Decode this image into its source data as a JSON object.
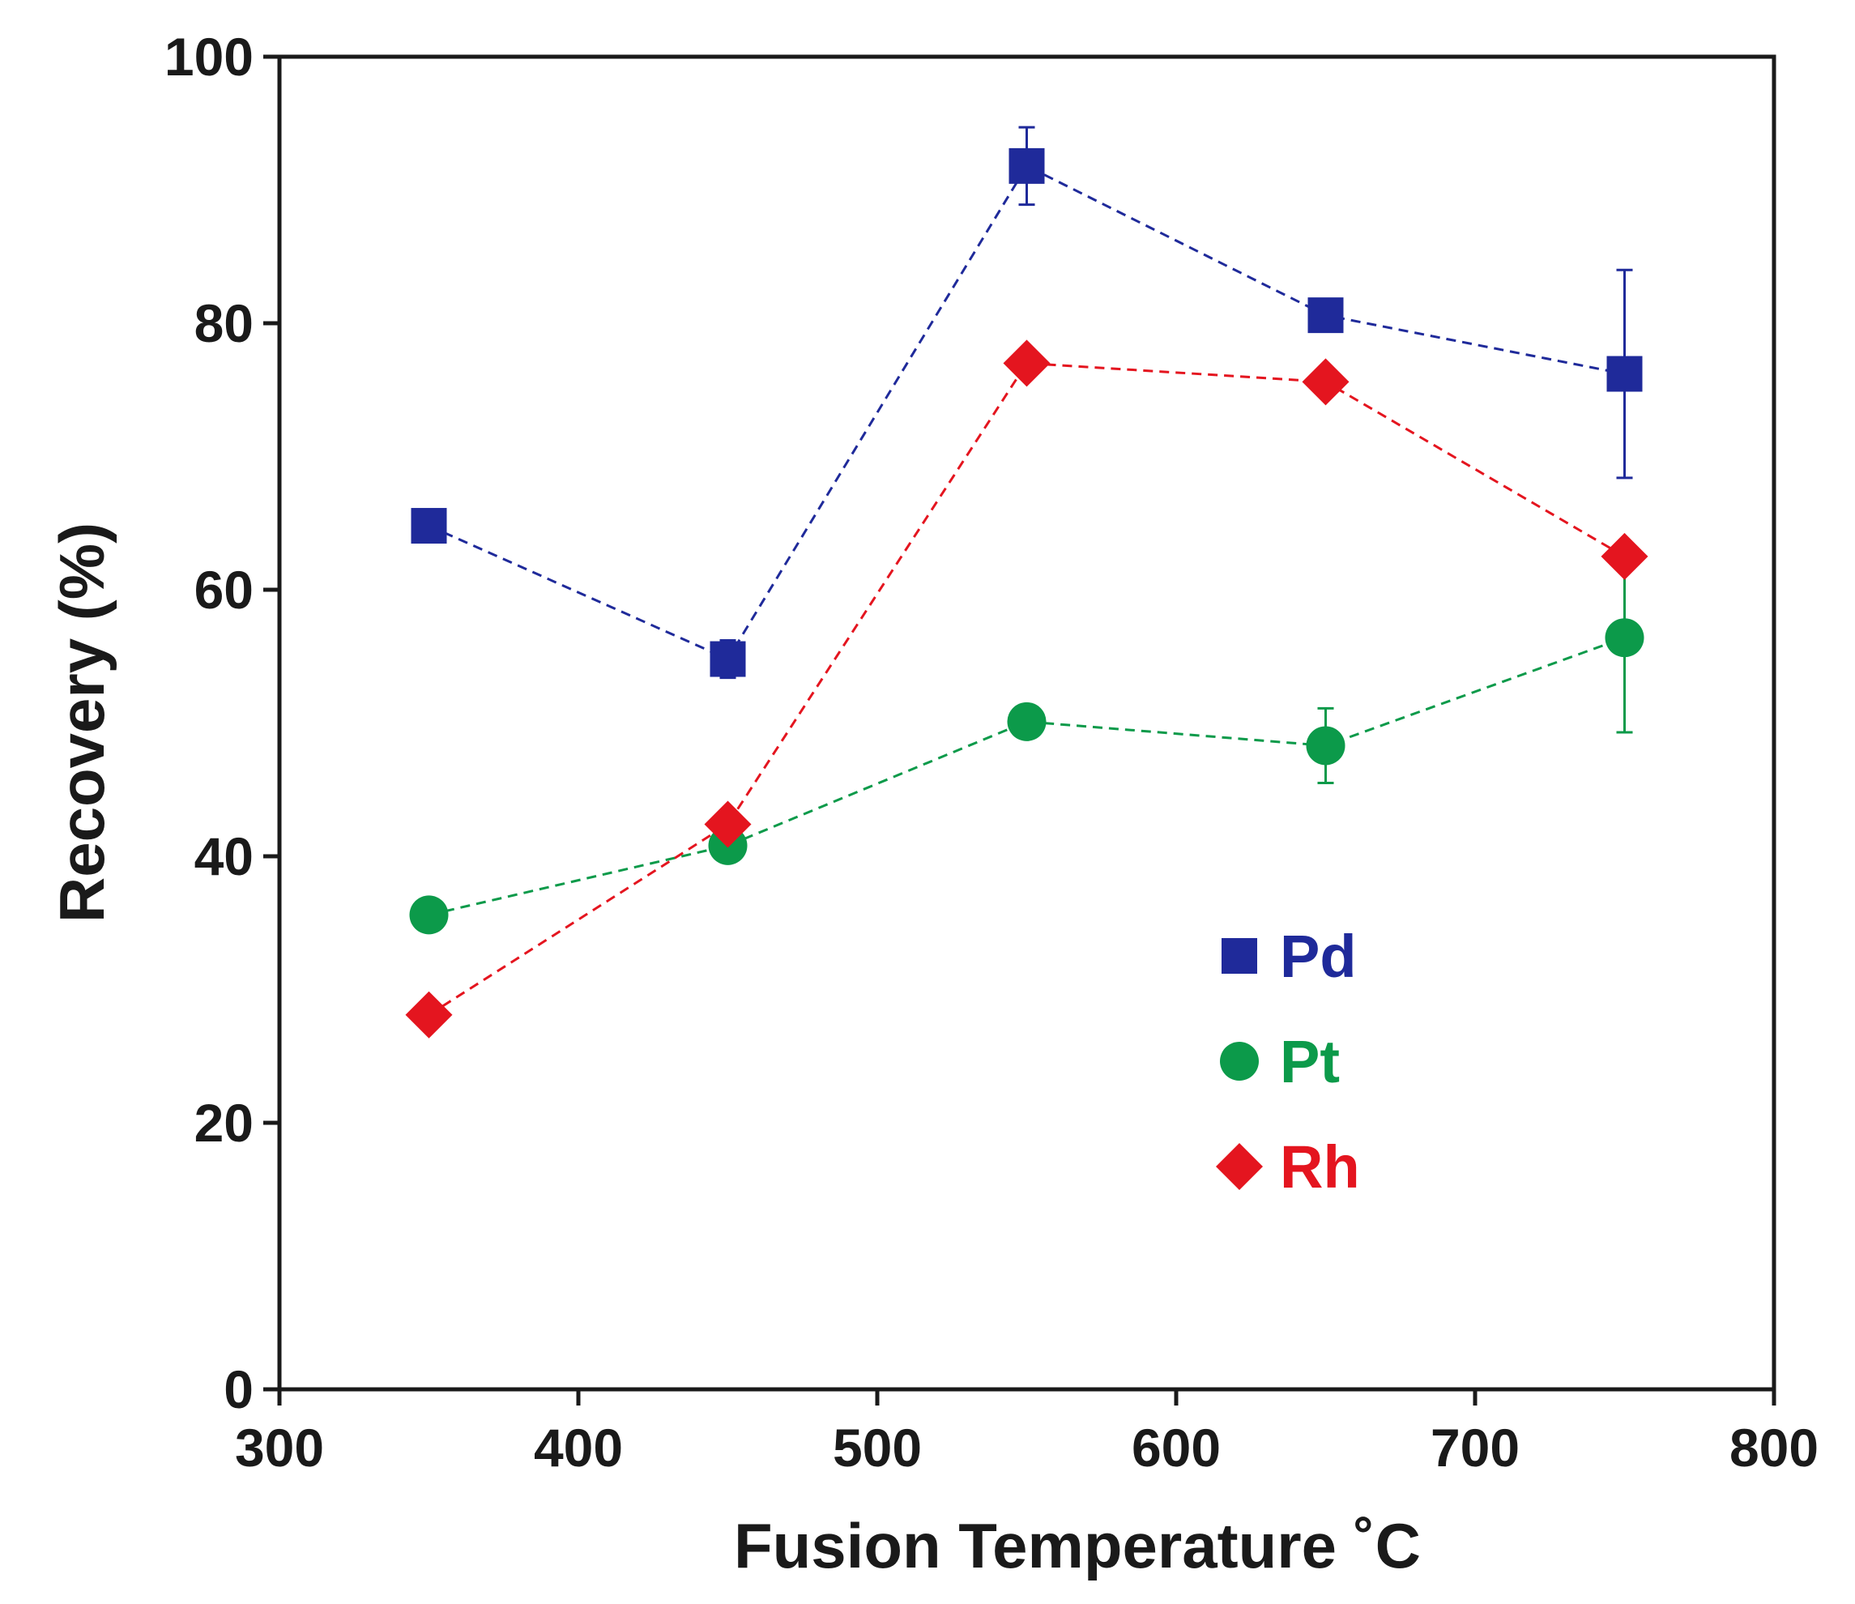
{
  "chart_data": {
    "type": "line",
    "title": "",
    "xlabel": "Fusion Temperature ˚C",
    "ylabel": "Recovery (%)",
    "xlim": [
      300,
      800
    ],
    "ylim": [
      0,
      100
    ],
    "xticks": [
      300,
      400,
      500,
      600,
      700,
      800
    ],
    "yticks": [
      0,
      20,
      40,
      60,
      80,
      100
    ],
    "xtick_labels": [
      "300",
      "400",
      "500",
      "600",
      "700",
      "800"
    ],
    "ytick_labels": [
      "0",
      "20",
      "40",
      "60",
      "80",
      "100"
    ],
    "grid": false,
    "legend_position": "center-right",
    "line_style": "dashed",
    "x": [
      350,
      450,
      550,
      650,
      750
    ],
    "series": [
      {
        "name": "Pd",
        "marker": "square",
        "color": "#1f2a9a",
        "values": [
          64.8,
          54.8,
          91.8,
          80.6,
          76.2
        ],
        "error": [
          0,
          1.4,
          2.9,
          0,
          7.8
        ]
      },
      {
        "name": "Pt",
        "marker": "circle",
        "color": "#0c9a4a",
        "values": [
          35.6,
          40.8,
          50.1,
          48.3,
          56.4
        ],
        "error": [
          0,
          0,
          0,
          2.8,
          7.1
        ]
      },
      {
        "name": "Rh",
        "marker": "diamond",
        "color": "#e4151f",
        "values": [
          28.1,
          42.4,
          77.0,
          75.6,
          62.5
        ],
        "error": [
          0,
          0,
          0,
          0,
          0
        ]
      }
    ]
  }
}
